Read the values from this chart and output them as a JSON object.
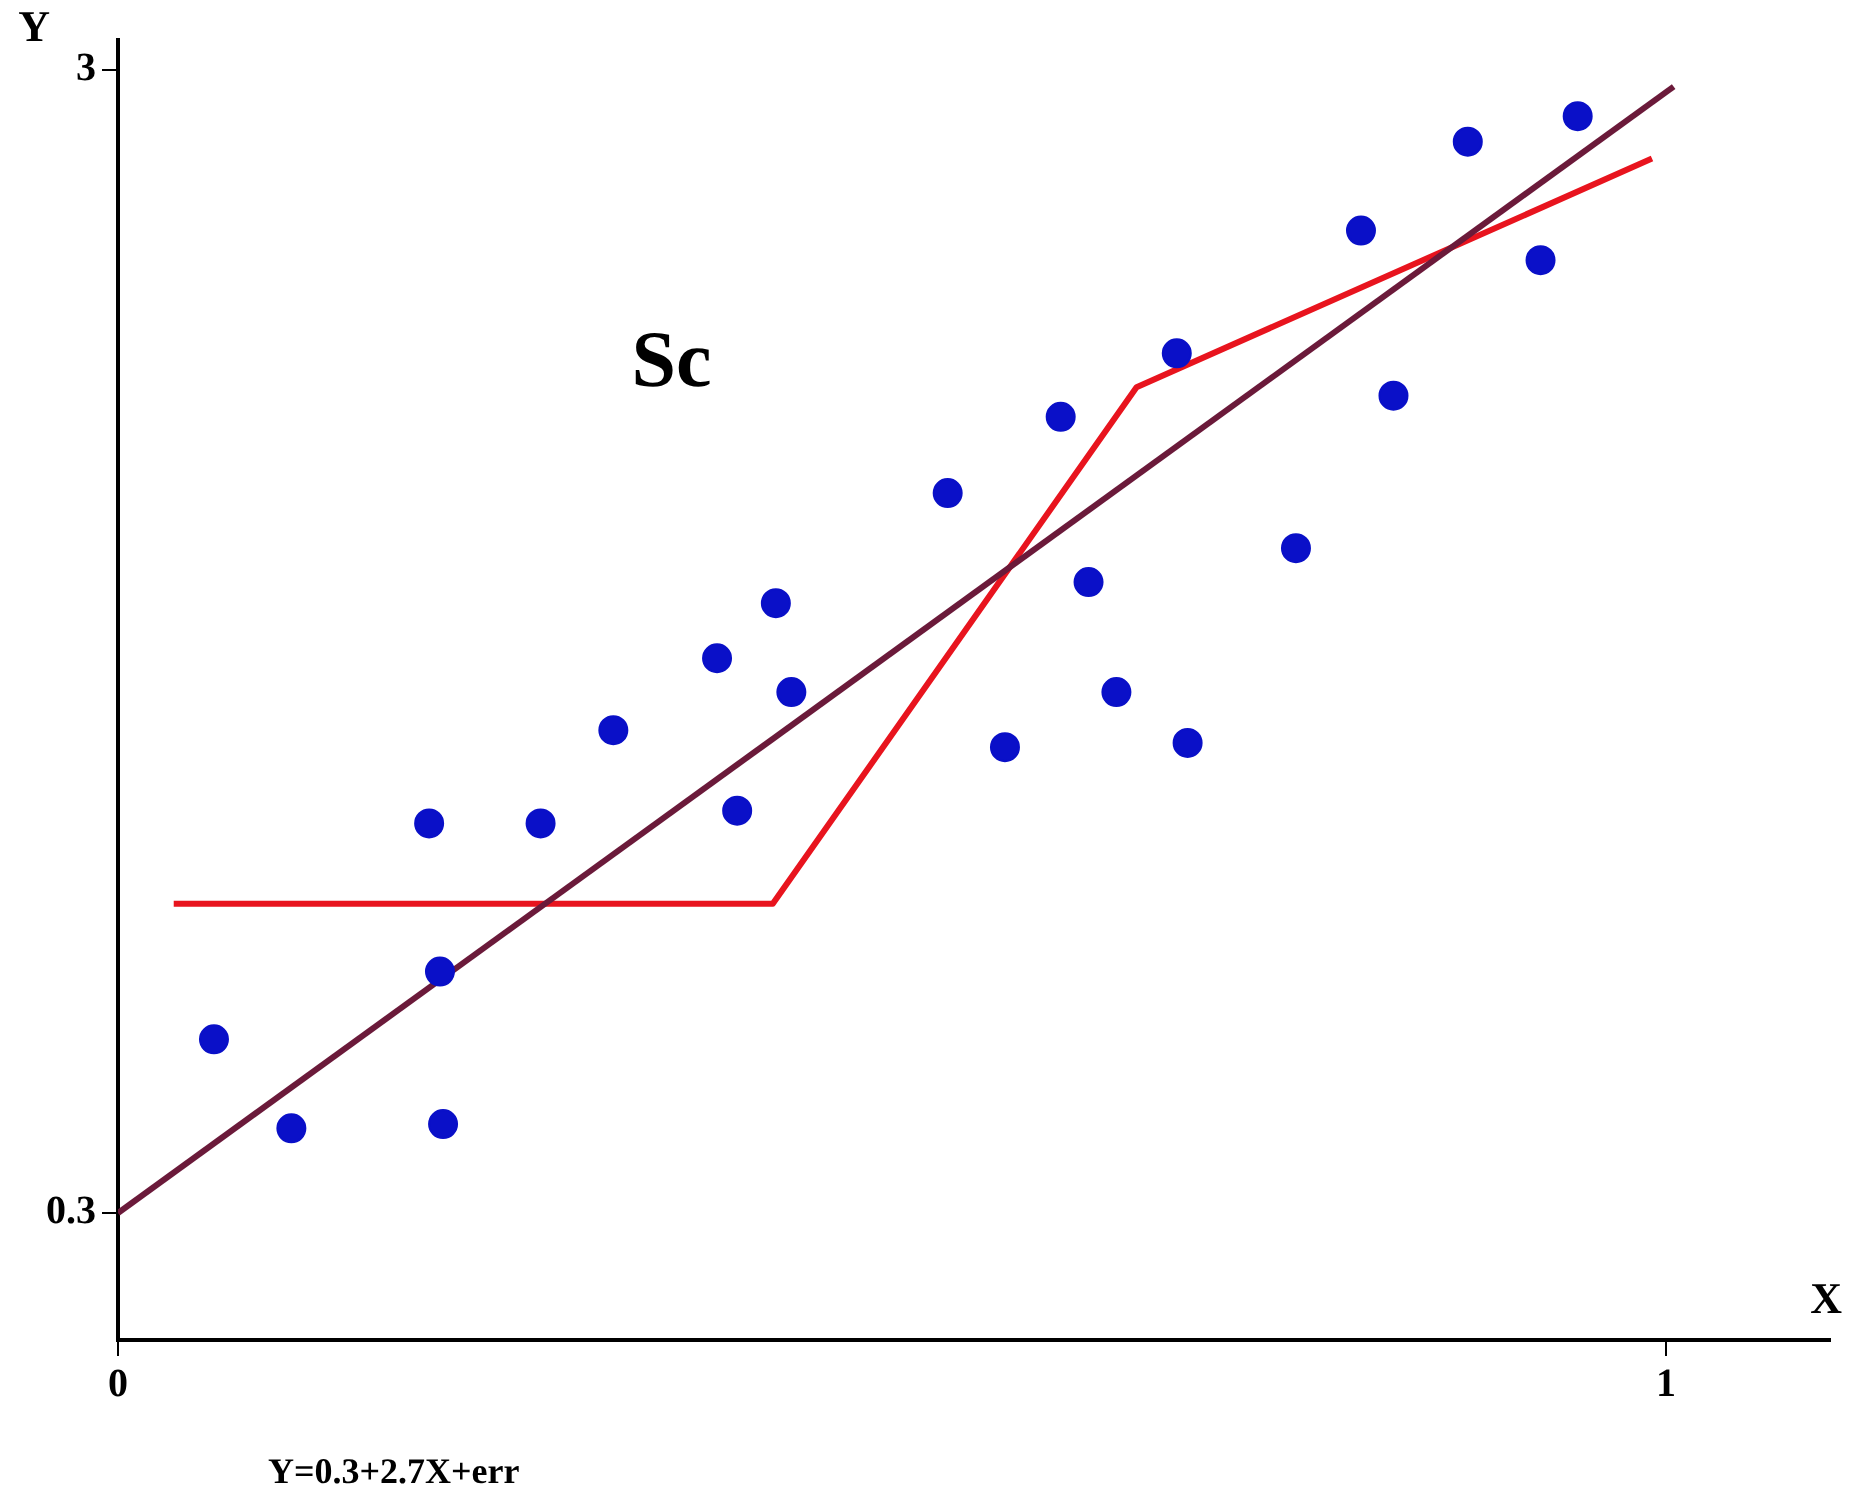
{
  "chart_data": {
    "type": "scatter",
    "xlabel": "X",
    "ylabel": "Y",
    "annotations": [
      "Sc",
      "Y=0.3+2.7X+err"
    ],
    "xlim": [
      0,
      1.106
    ],
    "xticks": [
      0,
      1
    ],
    "ylim": [
      0,
      3.07
    ],
    "yticks": [
      0.3,
      3
    ],
    "grid": false,
    "legend": false,
    "series": [
      {
        "marker": "circle",
        "color": "#0a10c8",
        "x": [
          0.062,
          0.112,
          0.21,
          0.208,
          0.201,
          0.273,
          0.32,
          0.4,
          0.387,
          0.425,
          0.435,
          0.536,
          0.573,
          0.609,
          0.627,
          0.645,
          0.684,
          0.691,
          0.761,
          0.803,
          0.824,
          0.872,
          0.919,
          0.943
        ],
        "values": [
          0.71,
          0.5,
          0.51,
          0.87,
          1.22,
          1.22,
          1.44,
          1.25,
          1.61,
          1.74,
          1.53,
          2.0,
          1.4,
          2.18,
          1.79,
          1.53,
          2.33,
          1.41,
          1.87,
          2.62,
          2.23,
          2.83,
          2.55,
          2.89
        ]
      },
      {
        "type": "line",
        "marker": "none",
        "line_style": "solid",
        "color": "#6b1a3a",
        "x": [
          0,
          1.005
        ],
        "values": [
          0.3,
          2.96
        ]
      },
      {
        "type": "line",
        "marker": "none",
        "line_style": "solid",
        "color": "#e8141e",
        "x": [
          0.036,
          0.423,
          0.658,
          0.991
        ],
        "values": [
          1.03,
          1.03,
          2.25,
          2.79
        ]
      }
    ]
  }
}
